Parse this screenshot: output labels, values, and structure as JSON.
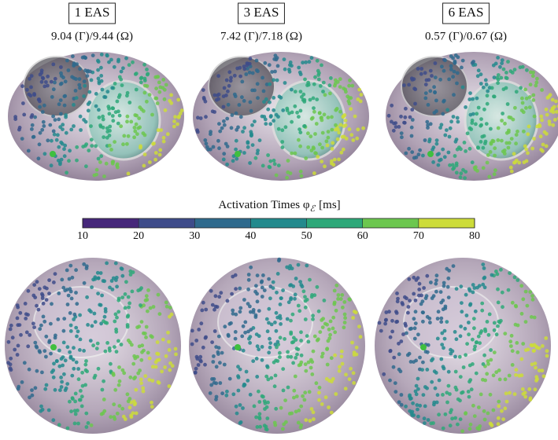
{
  "panels": [
    {
      "title": "1 EAS",
      "metrics": "9.04 (Γ)/9.44 (Ω)"
    },
    {
      "title": "3 EAS",
      "metrics": "7.42 (Γ)/7.18 (Ω)"
    },
    {
      "title": "6 EAS",
      "metrics": "0.57 (Γ)/0.67 (Ω)"
    }
  ],
  "colorbar": {
    "label": "Activation Times φ",
    "label_subscript": "ℰ",
    "unit": "[ms]",
    "lim": [
      10,
      80
    ],
    "ticks": [
      10,
      20,
      30,
      40,
      50,
      60,
      70,
      80
    ],
    "colors": [
      "#46277a",
      "#3e4c8a",
      "#2f6a8d",
      "#238a8d",
      "#2ea879",
      "#6cc74f",
      "#cddc3a"
    ]
  }
}
